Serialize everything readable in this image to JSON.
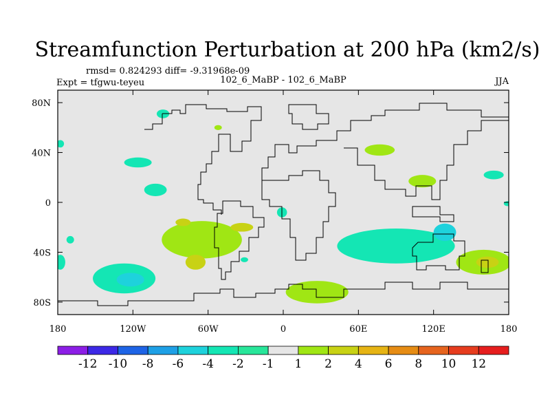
{
  "chart_data": {
    "type": "heatmap",
    "title": "Streamfunction Perturbation at 200 hPa (km2/s)",
    "stats_line": "rmsd= 0.824293 diff= -9.31968e-09",
    "experiment": "Expt = tfgwu-teyeu",
    "comparison": "102_6_MaBP - 102_6_MaBP",
    "season": "JJA",
    "x_axis": {
      "range": [
        -180,
        180
      ],
      "ticks": [
        {
          "value": -180,
          "label": "180"
        },
        {
          "value": -120,
          "label": "120W"
        },
        {
          "value": -60,
          "label": "60W"
        },
        {
          "value": 0,
          "label": "0"
        },
        {
          "value": 60,
          "label": "60E"
        },
        {
          "value": 120,
          "label": "120E"
        },
        {
          "value": 180,
          "label": "180"
        }
      ]
    },
    "y_axis": {
      "range": [
        -90,
        90
      ],
      "ticks": [
        {
          "value": 80,
          "label": "80N"
        },
        {
          "value": 40,
          "label": "40N"
        },
        {
          "value": 0,
          "label": "0"
        },
        {
          "value": -40,
          "label": "40S"
        },
        {
          "value": -80,
          "label": "80S"
        }
      ]
    },
    "colorbar": {
      "labels": [
        "-12",
        "-10",
        "-8",
        "-6",
        "-4",
        "-2",
        "-1",
        "1",
        "2",
        "4",
        "6",
        "8",
        "10",
        "12"
      ],
      "colors": [
        "#8c1ee6",
        "#3c28e6",
        "#1e64e6",
        "#1ea0e6",
        "#1ed2dc",
        "#14e6b4",
        "#28e69a",
        "#e6e6e6",
        "#a0e614",
        "#c8d214",
        "#e6b414",
        "#e68c14",
        "#e6641e",
        "#e63c1e",
        "#e61e1e"
      ]
    },
    "background_color": "#e6e6e6",
    "features": [
      {
        "name": "anomaly-sh-pacific-negative",
        "lon": -127,
        "lat": -61,
        "rx": 25,
        "ry": 12,
        "level": 5
      },
      {
        "name": "anomaly-sh-pacific-core",
        "lon": -122,
        "lat": -62,
        "rx": 11,
        "ry": 5.5,
        "level": 4
      },
      {
        "name": "anomaly-north-pacific",
        "lon": -116,
        "lat": 32,
        "rx": 11,
        "ry": 4,
        "level": 5
      },
      {
        "name": "anomaly-eastern-pacific",
        "lon": -102,
        "lat": 10,
        "rx": 9,
        "ry": 5,
        "level": 5
      },
      {
        "name": "anomaly-arctic-pacific",
        "lon": -96,
        "lat": 71,
        "rx": 5,
        "ry": 3.5,
        "level": 5
      },
      {
        "name": "anomaly-dateline-south",
        "lon": -170,
        "lat": -30,
        "rx": 3,
        "ry": 3,
        "level": 5
      },
      {
        "name": "anomaly-west-edge-south",
        "lon": -178,
        "lat": -48,
        "rx": 4,
        "ry": 6,
        "level": 5
      },
      {
        "name": "anomaly-west-edge-north",
        "lon": -178,
        "lat": 47,
        "rx": 3,
        "ry": 3,
        "level": 5
      },
      {
        "name": "anomaly-canada",
        "lon": -52,
        "lat": 60,
        "rx": 3,
        "ry": 2,
        "level": 8
      },
      {
        "name": "anomaly-sh-atlantic-arc",
        "lon": -65,
        "lat": -30,
        "rx": 32,
        "ry": 15,
        "level": 8
      },
      {
        "name": "anomaly-sh-atlantic-arc-core",
        "lon": -80,
        "lat": -16,
        "rx": 6,
        "ry": 3,
        "level": 9
      },
      {
        "name": "anomaly-argentina-core",
        "lon": -70,
        "lat": -48,
        "rx": 8,
        "ry": 6,
        "level": 9
      },
      {
        "name": "anomaly-south-atlantic-core",
        "lon": -33,
        "lat": -20,
        "rx": 9,
        "ry": 3.5,
        "level": 9
      },
      {
        "name": "anomaly-gulf-of-guinea",
        "lon": -1,
        "lat": -8,
        "rx": 4,
        "ry": 4,
        "level": 5
      },
      {
        "name": "anomaly-south-atlantic-small",
        "lon": -31,
        "lat": -46,
        "rx": 3,
        "ry": 2,
        "level": 5
      },
      {
        "name": "anomaly-southern-ocean-atlantic",
        "lon": 27,
        "lat": -72,
        "rx": 25,
        "ry": 9,
        "level": 8
      },
      {
        "name": "anomaly-west-asia",
        "lon": 77,
        "lat": 42,
        "rx": 12,
        "ry": 4.5,
        "level": 8
      },
      {
        "name": "anomaly-east-asia",
        "lon": 111,
        "lat": 17,
        "rx": 11,
        "ry": 5,
        "level": 8
      },
      {
        "name": "anomaly-north-pacific-east",
        "lon": 168,
        "lat": 22,
        "rx": 8,
        "ry": 3.5,
        "level": 5
      },
      {
        "name": "anomaly-east-edge",
        "lon": 179,
        "lat": -1,
        "rx": 3,
        "ry": 2,
        "level": 5
      },
      {
        "name": "anomaly-indo-pacific-arc",
        "lon": 90,
        "lat": -35,
        "rx": 47,
        "ry": 14,
        "level": 5
      },
      {
        "name": "anomaly-indo-pacific-core",
        "lon": 129,
        "lat": -24,
        "rx": 9,
        "ry": 7,
        "level": 4
      },
      {
        "name": "anomaly-sh-pacific-east",
        "lon": 160,
        "lat": -48,
        "rx": 22,
        "ry": 10,
        "level": 8
      },
      {
        "name": "anomaly-sh-pacific-east-core",
        "lon": 163,
        "lat": -48,
        "rx": 9,
        "ry": 4.5,
        "level": 9
      }
    ]
  }
}
